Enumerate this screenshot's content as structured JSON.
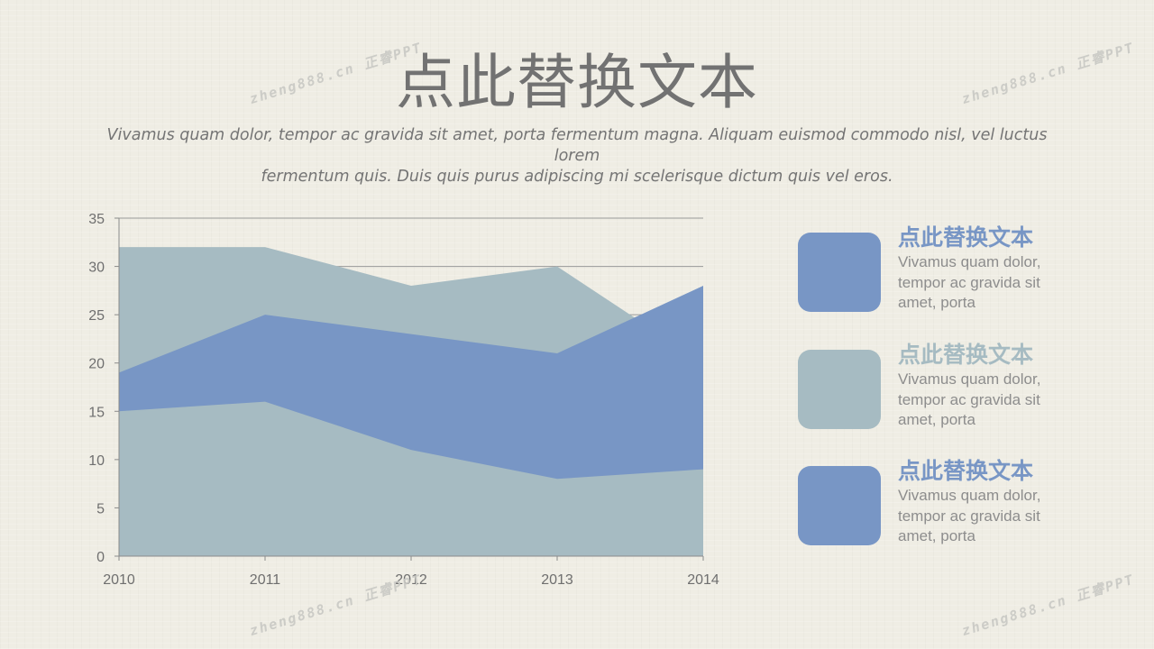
{
  "title": "点此替换文本",
  "subtitle_lines": [
    "Vivamus quam dolor, tempor ac gravida sit amet, porta fermentum magna. Aliquam euismod commodo nisl, vel luctus lorem",
    "fermentum quis. Duis  quis purus adipiscing mi scelerisque dictum quis vel eros."
  ],
  "watermarks": [
    "zheng888.cn 正睿PPT",
    "zheng888.cn 正睿PPT",
    "zheng888.cn 正睿PPT",
    "zheng888.cn 正睿PPT"
  ],
  "colors": {
    "blue": "#7896c5",
    "gray": "#a6bbc2",
    "title_blue": "#7896c5",
    "title_gray": "#a6bbc2"
  },
  "chart_data": {
    "type": "area",
    "categories": [
      "2010",
      "2011",
      "2012",
      "2013",
      "2014"
    ],
    "ylim": [
      0,
      35
    ],
    "yticks": [
      0,
      5,
      10,
      15,
      20,
      25,
      30,
      35
    ],
    "grid": true,
    "series": [
      {
        "values": [
          32,
          32,
          28,
          30,
          20
        ],
        "color": "#a6bbc2"
      },
      {
        "values": [
          19,
          25,
          23,
          21,
          28
        ],
        "color": "#7896c5"
      },
      {
        "values": [
          15,
          16,
          11,
          8,
          9
        ],
        "color": "#a6bbc2"
      }
    ]
  },
  "legend": [
    {
      "title": "点此替换文本",
      "text": "Vivamus quam dolor, tempor ac gravida sit amet, porta",
      "color": "#7896c5"
    },
    {
      "title": "点此替换文本",
      "text": "Vivamus quam dolor, tempor ac gravida sit amet, porta",
      "color": "#a6bbc2"
    },
    {
      "title": "点此替换文本",
      "text": "Vivamus quam dolor, tempor ac gravida sit amet, porta",
      "color": "#7896c5"
    }
  ]
}
